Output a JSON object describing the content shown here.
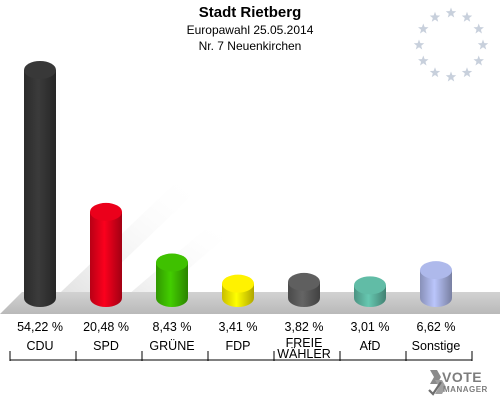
{
  "header": {
    "title": "Stadt Rietberg",
    "subtitle": "Europawahl 25.05.2014",
    "district": "Nr. 7 Neuenkirchen"
  },
  "logo": {
    "line1": "VOTE",
    "line2": "MANAGER",
    "icon": "vote-manager-logo-icon"
  },
  "emblem": {
    "icon": "eu-stars-icon",
    "star_count": 12,
    "color": "#c8d0dc"
  },
  "chart_data": {
    "type": "bar",
    "title": "Stadt Rietberg",
    "subtitle": "Europawahl 25.05.2014",
    "categories": [
      "CDU",
      "SPD",
      "GRÜNE",
      "FDP",
      "FREIE WÄHLER",
      "AfD",
      "Sonstige"
    ],
    "category_lines": [
      [
        "CDU"
      ],
      [
        "SPD"
      ],
      [
        "GRÜNE"
      ],
      [
        "FDP"
      ],
      [
        "FREIE",
        "WÄHLER"
      ],
      [
        "AfD"
      ],
      [
        "Sonstige"
      ]
    ],
    "values": [
      54.22,
      20.48,
      8.43,
      3.41,
      3.82,
      3.01,
      6.62
    ],
    "value_labels": [
      "54,22 %",
      "20,48 %",
      "8,43 %",
      "3,41 %",
      "3,82 %",
      "3,01 %",
      "6,62 %"
    ],
    "colors": [
      "#353535",
      "#e0001a",
      "#3cb800",
      "#f5e600",
      "#5a5a5a",
      "#5cb39e",
      "#a6b0e0"
    ],
    "ylim": [
      0,
      54.22
    ],
    "grid": false,
    "legend": "none"
  }
}
